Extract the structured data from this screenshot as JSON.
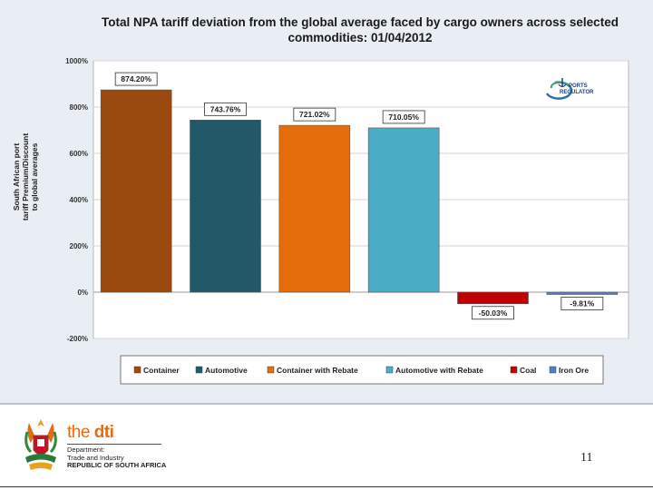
{
  "chart_data": {
    "type": "bar",
    "title_line1": "Total NPA tariff deviation from the global average faced by cargo owners across selected",
    "title_line2": "commodities: 01/04/2012",
    "ylabel": [
      "South African port",
      "tariff Premium/Discount",
      "to global averages"
    ],
    "ylim": [
      -200,
      1000
    ],
    "yticks": [
      -200,
      0,
      200,
      400,
      600,
      800,
      1000
    ],
    "ytick_labels": [
      "-200%",
      "0%",
      "200%",
      "400%",
      "600%",
      "800%",
      "1000%"
    ],
    "grid": true,
    "legend_position": "bottom",
    "categories": [
      "Container",
      "Automotive",
      "Container with Rebate",
      "Automotive with Rebate",
      "Coal",
      "Iron Ore"
    ],
    "values": [
      874.2,
      743.76,
      721.02,
      710.05,
      -50.03,
      -9.81
    ],
    "data_labels": [
      "874.20%",
      "743.76%",
      "721.02%",
      "710.05%",
      "-50.03%",
      "-9.81%"
    ],
    "colors": [
      "#9a4a0e",
      "#215968",
      "#e46c0a",
      "#4bacc6",
      "#c00000",
      "#4f81bd"
    ],
    "logo_text": [
      "PORTS",
      "REGULATOR"
    ]
  },
  "footer": {
    "org_name_prefix": "the ",
    "org_name_main": "dti",
    "dept_lines": [
      "Department:",
      "Trade and Industry"
    ],
    "country": "REPUBLIC OF SOUTH AFRICA",
    "page_number": "11"
  }
}
